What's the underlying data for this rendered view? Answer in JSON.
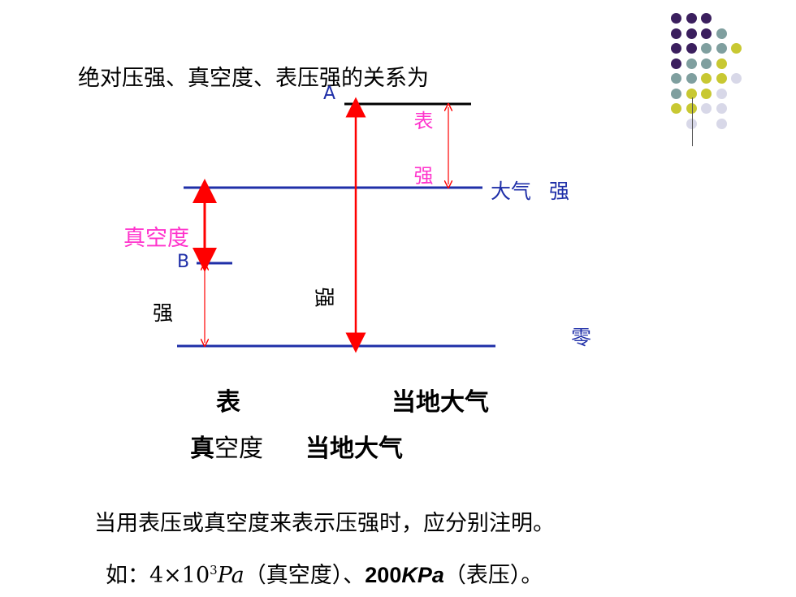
{
  "slide": {
    "title": "绝对压强、真空度、表压强的关系为",
    "labels": {
      "point_a": "A",
      "point_b": "B",
      "gauge_pressure_vertical": "表 强",
      "atmosphere": "大气 强",
      "vacuum": "真空度",
      "left_pressure": "强",
      "middle_pressure": "强",
      "zero": "零"
    },
    "formula_1": {
      "left": "表",
      "right_bold": "当",
      "right_rest": "地大气"
    },
    "formula_2": {
      "left_bold": "真",
      "left_rest": "空度",
      "right_bold": "当",
      "right_rest": "地大气"
    },
    "note": "当用表压或真空度来表示压强时，应分别注明。",
    "example": {
      "prefix": "如：",
      "number": "4×10",
      "exponent": "3",
      "unit": "Pa",
      "vacuum_tag": "（真空度）、",
      "value2": "200",
      "unit2": "KPa",
      "gauge_tag": "（表压）。"
    }
  },
  "colors": {
    "purple": "#3b1f5e",
    "teal": "#7f9f9f",
    "yellow": "#c8c832",
    "lavender": "#d8d8e8",
    "blue_line": "#1f2fa8",
    "red_arrow": "#ff0000",
    "magenta_text": "#ff33cc"
  }
}
